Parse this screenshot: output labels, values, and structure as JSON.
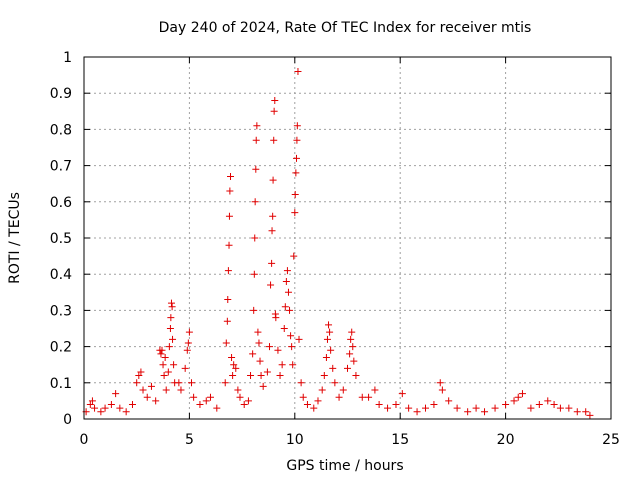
{
  "chart_data": {
    "type": "scatter",
    "title": "Day 240 of 2024, Rate Of TEC Index for receiver mtis",
    "xlabel": "GPS time / hours",
    "ylabel": "ROTI / TECUs",
    "xlim": [
      0,
      25
    ],
    "ylim": [
      0,
      1
    ],
    "xticks": [
      0,
      5,
      10,
      15,
      20,
      25
    ],
    "yticks": [
      0,
      0.1,
      0.2,
      0.3,
      0.4,
      0.5,
      0.6,
      0.7,
      0.8,
      0.9,
      1
    ],
    "xtick_labels": [
      "0",
      "5",
      "10",
      "15",
      "20",
      "25"
    ],
    "ytick_labels": [
      "0",
      "0.1",
      "0.2",
      "0.3",
      "0.4",
      "0.5",
      "0.6",
      "0.7",
      "0.8",
      "0.9",
      "1"
    ],
    "grid": true,
    "marker": "+",
    "color": "#e00000",
    "series": [
      {
        "name": "ROTI",
        "points": [
          [
            0.1,
            0.02
          ],
          [
            0.3,
            0.04
          ],
          [
            0.4,
            0.05
          ],
          [
            0.5,
            0.03
          ],
          [
            0.8,
            0.02
          ],
          [
            1.0,
            0.03
          ],
          [
            1.3,
            0.04
          ],
          [
            1.5,
            0.07
          ],
          [
            1.7,
            0.03
          ],
          [
            2.0,
            0.02
          ],
          [
            2.3,
            0.04
          ],
          [
            2.5,
            0.1
          ],
          [
            2.6,
            0.12
          ],
          [
            2.7,
            0.13
          ],
          [
            2.8,
            0.08
          ],
          [
            3.0,
            0.06
          ],
          [
            3.2,
            0.09
          ],
          [
            3.4,
            0.05
          ],
          [
            3.6,
            0.19
          ],
          [
            3.65,
            0.18
          ],
          [
            3.7,
            0.19
          ],
          [
            3.75,
            0.15
          ],
          [
            3.8,
            0.12
          ],
          [
            3.85,
            0.17
          ],
          [
            3.9,
            0.08
          ],
          [
            4.0,
            0.13
          ],
          [
            4.05,
            0.2
          ],
          [
            4.1,
            0.25
          ],
          [
            4.12,
            0.28
          ],
          [
            4.15,
            0.32
          ],
          [
            4.18,
            0.31
          ],
          [
            4.2,
            0.22
          ],
          [
            4.25,
            0.15
          ],
          [
            4.3,
            0.1
          ],
          [
            4.5,
            0.1
          ],
          [
            4.6,
            0.08
          ],
          [
            4.8,
            0.14
          ],
          [
            4.9,
            0.19
          ],
          [
            4.95,
            0.21
          ],
          [
            5.0,
            0.24
          ],
          [
            5.1,
            0.1
          ],
          [
            5.2,
            0.06
          ],
          [
            5.5,
            0.04
          ],
          [
            5.8,
            0.05
          ],
          [
            6.0,
            0.06
          ],
          [
            6.3,
            0.03
          ],
          [
            6.7,
            0.1
          ],
          [
            6.75,
            0.21
          ],
          [
            6.8,
            0.27
          ],
          [
            6.82,
            0.33
          ],
          [
            6.85,
            0.41
          ],
          [
            6.88,
            0.48
          ],
          [
            6.9,
            0.56
          ],
          [
            6.92,
            0.63
          ],
          [
            6.95,
            0.67
          ],
          [
            7.0,
            0.17
          ],
          [
            7.05,
            0.12
          ],
          [
            7.1,
            0.15
          ],
          [
            7.2,
            0.14
          ],
          [
            7.3,
            0.08
          ],
          [
            7.4,
            0.06
          ],
          [
            7.6,
            0.04
          ],
          [
            7.8,
            0.05
          ],
          [
            7.9,
            0.12
          ],
          [
            8.0,
            0.18
          ],
          [
            8.05,
            0.3
          ],
          [
            8.08,
            0.4
          ],
          [
            8.1,
            0.5
          ],
          [
            8.12,
            0.6
          ],
          [
            8.15,
            0.69
          ],
          [
            8.17,
            0.77
          ],
          [
            8.2,
            0.81
          ],
          [
            8.25,
            0.24
          ],
          [
            8.3,
            0.21
          ],
          [
            8.35,
            0.16
          ],
          [
            8.4,
            0.12
          ],
          [
            8.5,
            0.09
          ],
          [
            8.7,
            0.13
          ],
          [
            8.8,
            0.2
          ],
          [
            8.85,
            0.37
          ],
          [
            8.9,
            0.43
          ],
          [
            8.92,
            0.52
          ],
          [
            8.95,
            0.56
          ],
          [
            8.97,
            0.66
          ],
          [
            9.0,
            0.77
          ],
          [
            9.02,
            0.85
          ],
          [
            9.05,
            0.88
          ],
          [
            9.08,
            0.29
          ],
          [
            9.1,
            0.28
          ],
          [
            9.2,
            0.19
          ],
          [
            9.3,
            0.12
          ],
          [
            9.4,
            0.15
          ],
          [
            9.5,
            0.25
          ],
          [
            9.55,
            0.31
          ],
          [
            9.6,
            0.38
          ],
          [
            9.65,
            0.41
          ],
          [
            9.7,
            0.35
          ],
          [
            9.75,
            0.3
          ],
          [
            9.8,
            0.23
          ],
          [
            9.85,
            0.2
          ],
          [
            9.9,
            0.15
          ],
          [
            9.95,
            0.45
          ],
          [
            10.0,
            0.57
          ],
          [
            10.02,
            0.62
          ],
          [
            10.05,
            0.68
          ],
          [
            10.08,
            0.72
          ],
          [
            10.1,
            0.77
          ],
          [
            10.12,
            0.81
          ],
          [
            10.15,
            0.96
          ],
          [
            10.2,
            0.22
          ],
          [
            10.3,
            0.1
          ],
          [
            10.4,
            0.06
          ],
          [
            10.6,
            0.04
          ],
          [
            10.9,
            0.03
          ],
          [
            11.1,
            0.05
          ],
          [
            11.3,
            0.08
          ],
          [
            11.4,
            0.12
          ],
          [
            11.5,
            0.17
          ],
          [
            11.55,
            0.22
          ],
          [
            11.6,
            0.26
          ],
          [
            11.65,
            0.24
          ],
          [
            11.7,
            0.19
          ],
          [
            11.8,
            0.14
          ],
          [
            11.9,
            0.1
          ],
          [
            12.1,
            0.06
          ],
          [
            12.3,
            0.08
          ],
          [
            12.5,
            0.14
          ],
          [
            12.6,
            0.18
          ],
          [
            12.65,
            0.22
          ],
          [
            12.7,
            0.24
          ],
          [
            12.75,
            0.2
          ],
          [
            12.8,
            0.16
          ],
          [
            12.9,
            0.12
          ],
          [
            13.2,
            0.06
          ],
          [
            13.5,
            0.06
          ],
          [
            13.8,
            0.08
          ],
          [
            14.0,
            0.04
          ],
          [
            14.4,
            0.03
          ],
          [
            14.8,
            0.04
          ],
          [
            15.1,
            0.07
          ],
          [
            15.4,
            0.03
          ],
          [
            15.8,
            0.02
          ],
          [
            16.2,
            0.03
          ],
          [
            16.6,
            0.04
          ],
          [
            16.9,
            0.1
          ],
          [
            17.0,
            0.08
          ],
          [
            17.3,
            0.05
          ],
          [
            17.7,
            0.03
          ],
          [
            18.2,
            0.02
          ],
          [
            18.6,
            0.03
          ],
          [
            19.0,
            0.02
          ],
          [
            19.5,
            0.03
          ],
          [
            20.0,
            0.04
          ],
          [
            20.4,
            0.05
          ],
          [
            20.6,
            0.06
          ],
          [
            20.8,
            0.07
          ],
          [
            21.2,
            0.03
          ],
          [
            21.6,
            0.04
          ],
          [
            22.0,
            0.05
          ],
          [
            22.3,
            0.04
          ],
          [
            22.6,
            0.03
          ],
          [
            23.0,
            0.03
          ],
          [
            23.4,
            0.02
          ],
          [
            23.8,
            0.02
          ],
          [
            24.0,
            0.01
          ]
        ]
      }
    ]
  }
}
